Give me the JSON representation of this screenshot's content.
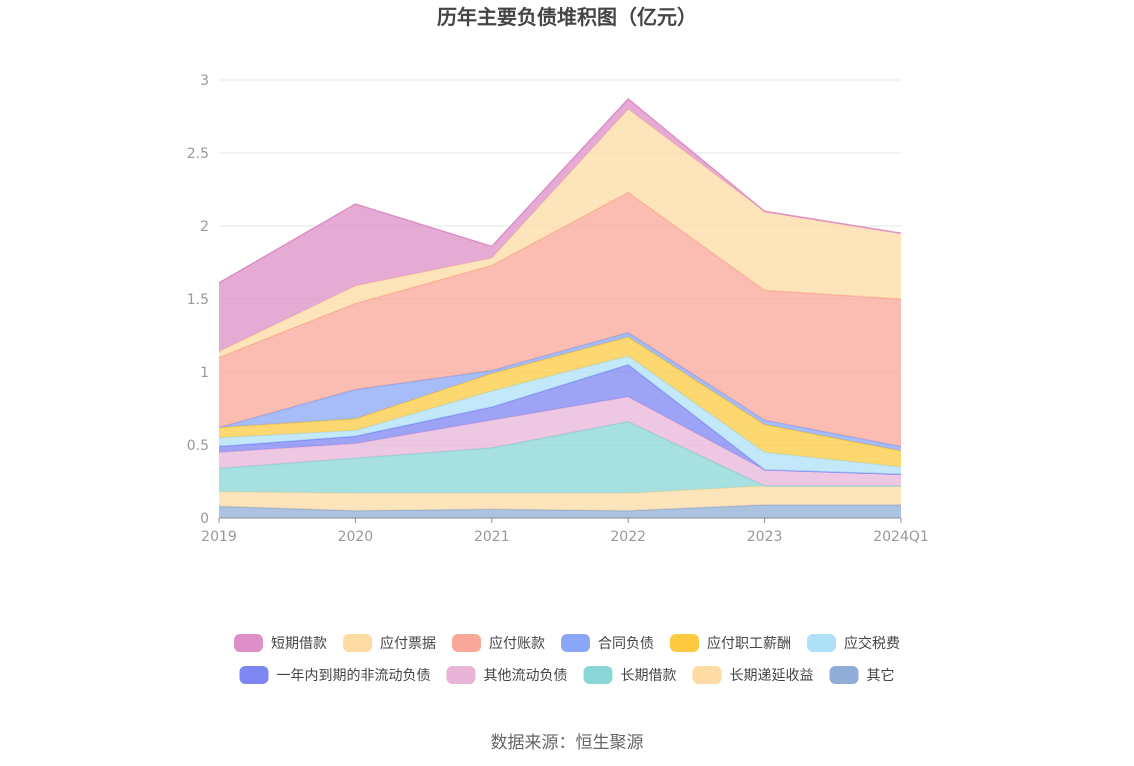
{
  "chart_data": {
    "type": "area",
    "title": "历年主要负债堆积图（亿元）",
    "x": [
      "2019",
      "2020",
      "2021",
      "2022",
      "2023",
      "2024Q1"
    ],
    "ylim": [
      0,
      3
    ],
    "yticks": [
      "0",
      "0.5",
      "1",
      "1.5",
      "2",
      "2.5",
      "3"
    ],
    "grid": true,
    "legend_position": "bottom",
    "stacked": true,
    "series": [
      {
        "name": "其它",
        "color": "#8fadd6",
        "values": [
          0.08,
          0.05,
          0.06,
          0.05,
          0.09,
          0.09
        ]
      },
      {
        "name": "长期递延收益",
        "color": "#fddba3",
        "values": [
          0.1,
          0.12,
          0.11,
          0.12,
          0.13,
          0.13
        ]
      },
      {
        "name": "长期借款",
        "color": "#8ad6d6",
        "values": [
          0.16,
          0.24,
          0.31,
          0.49,
          0.0,
          0.0
        ]
      },
      {
        "name": "其他流动负债",
        "color": "#e8b5d9",
        "values": [
          0.11,
          0.1,
          0.19,
          0.17,
          0.11,
          0.08
        ]
      },
      {
        "name": "一年内到期的非流动负债",
        "color": "#7e86f2",
        "values": [
          0.04,
          0.05,
          0.09,
          0.22,
          0.0,
          0.0
        ]
      },
      {
        "name": "应交税费",
        "color": "#aee0f7",
        "values": [
          0.06,
          0.04,
          0.11,
          0.06,
          0.12,
          0.05
        ]
      },
      {
        "name": "应付职工薪酬",
        "color": "#fcc940",
        "values": [
          0.07,
          0.08,
          0.12,
          0.13,
          0.19,
          0.11
        ]
      },
      {
        "name": "合同负债",
        "color": "#8aa7f7",
        "values": [
          0.0,
          0.2,
          0.02,
          0.03,
          0.03,
          0.03
        ]
      },
      {
        "name": "应付账款",
        "color": "#f9a798",
        "values": [
          0.48,
          0.59,
          0.72,
          0.96,
          0.89,
          1.01
        ]
      },
      {
        "name": "应付票据",
        "color": "#fddba3",
        "values": [
          0.04,
          0.12,
          0.05,
          0.57,
          0.54,
          0.45
        ]
      },
      {
        "name": "短期借款",
        "color": "#de8fc7",
        "values": [
          0.47,
          0.56,
          0.08,
          0.07,
          0.0,
          0.0
        ]
      }
    ],
    "legend_order": [
      "短期借款",
      "应付票据",
      "应付账款",
      "合同负债",
      "应付职工薪酬",
      "应交税费",
      "一年内到期的非流动负债",
      "其他流动负债",
      "长期借款",
      "长期递延收益",
      "其它"
    ]
  },
  "source_text": "数据来源：恒生聚源"
}
